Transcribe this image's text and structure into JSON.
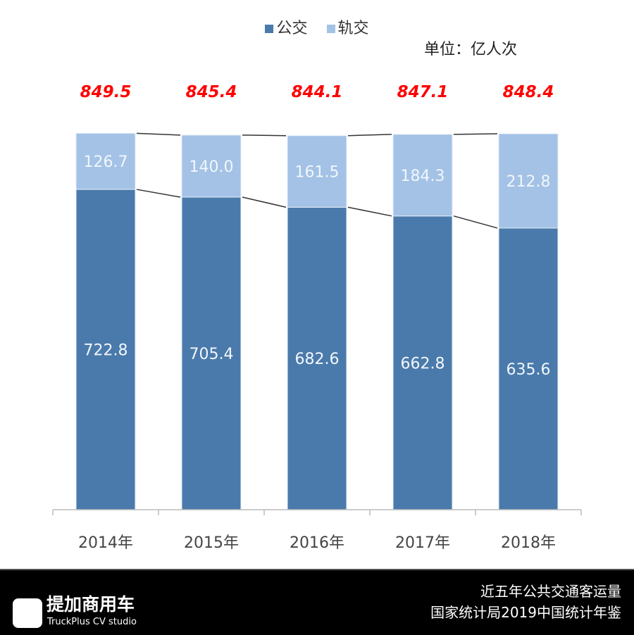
{
  "chart_data": {
    "type": "bar",
    "stacked": true,
    "categories": [
      "2014年",
      "2015年",
      "2016年",
      "2017年",
      "2018年"
    ],
    "series": [
      {
        "name": "公交",
        "values": [
          722.8,
          705.4,
          682.6,
          662.8,
          635.6
        ],
        "color": "#4a7aab"
      },
      {
        "name": "轨交",
        "values": [
          126.7,
          140.0,
          161.5,
          184.3,
          212.8
        ],
        "color": "#a3c2e6"
      }
    ],
    "totals": [
      849.5,
      845.4,
      844.1,
      847.1,
      848.4
    ],
    "totals_labels": [
      "849.5",
      "845.4",
      "844.1",
      "847.1",
      "848.4"
    ],
    "value_labels": [
      [
        "722.8",
        "705.4",
        "682.6",
        "662.8",
        "635.6"
      ],
      [
        "126.7",
        "140.0",
        "161.5",
        "184.3",
        "212.8"
      ]
    ],
    "total_color": "#ff0000",
    "unit": "单位：亿人次",
    "ylim": [
      0,
      850
    ],
    "grid": false,
    "legend": "top"
  },
  "footer": {
    "title": "近五年公共交通客运量",
    "source": "国家统计局2019中国统计年鉴",
    "logo_cn": "提加商用车",
    "logo_en": "TruckPlus CV studio"
  }
}
